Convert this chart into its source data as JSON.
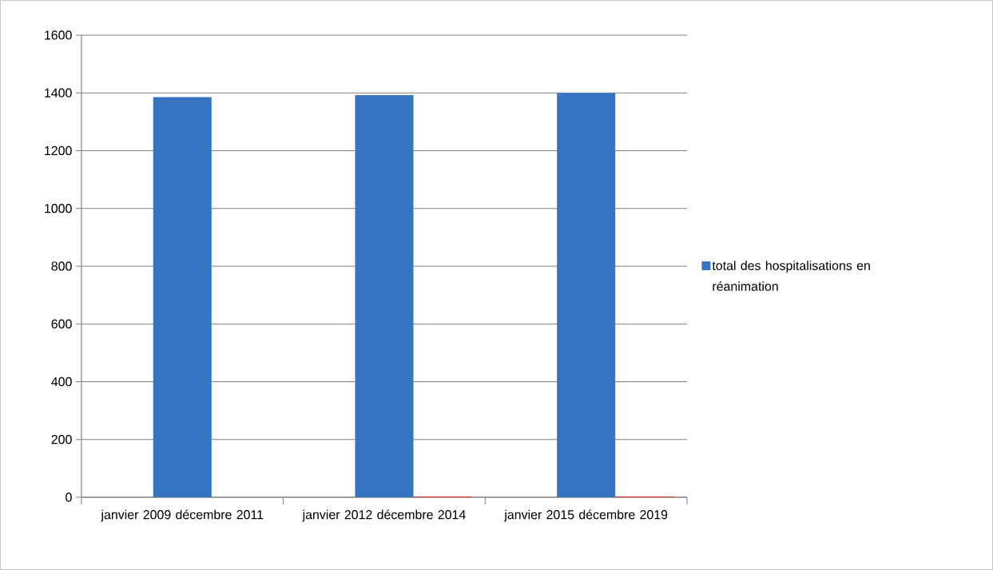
{
  "chart_data": {
    "type": "bar",
    "categories": [
      "janvier 2009 décembre 2011",
      "janvier 2012 décembre 2014",
      "janvier 2015 décembre 2019"
    ],
    "series": [
      {
        "name": "total des hospitalisations en réanimation",
        "color": "#3673c0",
        "values": [
          1385,
          1392,
          1400
        ]
      },
      {
        "color": "#d9463e",
        "values": [
          null,
          3,
          3
        ]
      }
    ],
    "ylim": [
      0,
      1600
    ],
    "yticks": [
      0,
      200,
      400,
      600,
      800,
      1000,
      1200,
      1400,
      1600
    ],
    "grid": "y",
    "legend": "right"
  }
}
